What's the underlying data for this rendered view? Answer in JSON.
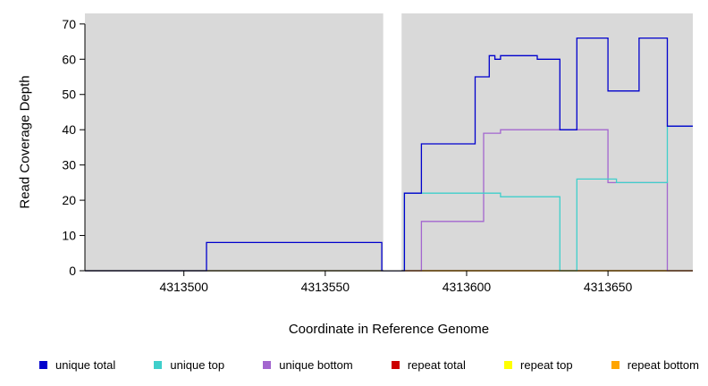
{
  "chart_data": {
    "type": "line",
    "style": "step",
    "title": "",
    "xlabel": "Coordinate in Reference Genome",
    "ylabel": "Read Coverage Depth",
    "xlim": [
      4313465,
      4313680
    ],
    "ylim": [
      0,
      73
    ],
    "x_ticks": [
      4313500,
      4313550,
      4313600,
      4313650
    ],
    "y_ticks": [
      0,
      10,
      20,
      30,
      40,
      50,
      60,
      70
    ],
    "grid": false,
    "plot_background": "#d9d9d9",
    "masked_region": {
      "from": 4313570.5,
      "to": 4313577,
      "color": "#ffffff"
    },
    "legend_position": "bottom",
    "series": [
      {
        "name": "repeat total",
        "color": "#CC0000",
        "steps": [
          [
            4313465,
            0
          ]
        ]
      },
      {
        "name": "repeat top",
        "color": "#FFFF00",
        "steps": [
          [
            4313465,
            0
          ]
        ]
      },
      {
        "name": "repeat bottom",
        "color": "#FFA500",
        "steps": [
          [
            4313465,
            0
          ]
        ]
      },
      {
        "name": "unique bottom",
        "color": "#A366CF",
        "steps": [
          [
            4313465,
            0
          ],
          [
            4313584,
            14
          ],
          [
            4313606,
            39
          ],
          [
            4313612,
            40
          ],
          [
            4313650,
            25
          ],
          [
            4313671,
            0
          ]
        ]
      },
      {
        "name": "unique top",
        "color": "#3FCFCB",
        "steps": [
          [
            4313465,
            0
          ],
          [
            4313578,
            22
          ],
          [
            4313612,
            21
          ],
          [
            4313633,
            0
          ],
          [
            4313639,
            26
          ],
          [
            4313653,
            25
          ],
          [
            4313671,
            41
          ]
        ]
      },
      {
        "name": "unique total",
        "color": "#0000CD",
        "steps": [
          [
            4313465,
            0
          ],
          [
            4313508,
            8
          ],
          [
            4313570,
            0
          ],
          [
            4313578,
            22
          ],
          [
            4313584,
            36
          ],
          [
            4313603,
            55
          ],
          [
            4313608,
            61
          ],
          [
            4313610,
            60
          ],
          [
            4313612,
            61
          ],
          [
            4313625,
            60
          ],
          [
            4313633,
            40
          ],
          [
            4313639,
            66
          ],
          [
            4313650,
            51
          ],
          [
            4313661,
            66
          ],
          [
            4313671,
            41
          ]
        ]
      }
    ]
  },
  "legend": {
    "items": [
      {
        "label": "unique total",
        "color": "#0000CD"
      },
      {
        "label": "unique top",
        "color": "#3FCFCB"
      },
      {
        "label": "unique bottom",
        "color": "#A366CF"
      },
      {
        "label": "repeat total",
        "color": "#CC0000"
      },
      {
        "label": "repeat top",
        "color": "#FFFF00"
      },
      {
        "label": "repeat bottom",
        "color": "#FFA500"
      }
    ]
  }
}
